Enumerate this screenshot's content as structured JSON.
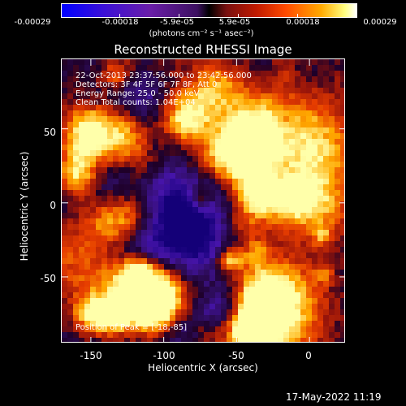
{
  "colorbar": {
    "ticks": [
      "-0.00029",
      "-0.00018",
      "-5.9e-05",
      "5.9e-05",
      "0.00018",
      "0.00029"
    ],
    "units": "(photons cm⁻² s⁻¹ asec⁻²)"
  },
  "title": "Reconstructed RHESSI Image",
  "info": {
    "time_range": "22-Oct-2013 23:37:56.000 to 23:42:56.000",
    "detectors": "Detectors: 3F 4F 5F 6F 7F 8F, Att 0",
    "energy": "Energy Range: 25.0 - 50.0 keV",
    "clean": "Clean     Total counts: 1.04E+04"
  },
  "peak_text": "Position of Peak = [-18,-85]",
  "axes": {
    "x_title": "Heliocentric X (arcsec)",
    "y_title": "Heliocentric Y (arcsec)",
    "x_ticks": [
      "-150",
      "-100",
      "-50",
      "0"
    ],
    "y_ticks": [
      "50",
      "0",
      "-50"
    ]
  },
  "timestamp": "17-May-2022 11:19",
  "colors": {
    "low": "#0000ff",
    "mid_low": "#5a20b0",
    "zero": "#2a0a50",
    "mid_high": "#c01a00",
    "high": "#ffaa00",
    "peak": "#ffff80"
  },
  "chart_data": {
    "type": "heatmap",
    "title": "Reconstructed RHESSI Image",
    "xlabel": "Heliocentric X (arcsec)",
    "ylabel": "Heliocentric Y (arcsec)",
    "xlim": [
      -170,
      25
    ],
    "ylim": [
      -95,
      97
    ],
    "colorbar_range": [
      -0.00029,
      0.00029
    ],
    "colorbar_ticks": [
      -0.00029,
      -0.00018,
      -5.9e-05,
      5.9e-05,
      0.00018,
      0.00029
    ],
    "peak_position": [
      -18,
      -85
    ],
    "x_ticks": [
      -150,
      -100,
      -50,
      0
    ],
    "y_ticks": [
      50,
      0,
      -50
    ]
  }
}
